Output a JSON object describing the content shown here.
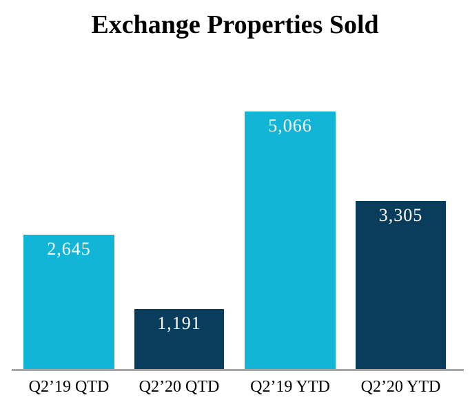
{
  "title": "Exchange Properties Sold",
  "colors": {
    "background": "#FFFFFF",
    "cyan_bar": "#12B5D6",
    "navy_bar": "#0A3D5C",
    "axis_line": "#A6A6A6",
    "value_label_text": "#FFFFFF",
    "title_text": "#000000",
    "category_label_text": "#000000"
  },
  "chart_data": {
    "type": "bar",
    "title": "Exchange Properties Sold",
    "categories": [
      "Q2’19 QTD",
      "Q2’20 QTD",
      "Q2’19 YTD",
      "Q2’20 YTD"
    ],
    "values": [
      2645,
      1191,
      5066,
      3305
    ],
    "value_labels": [
      "2,645",
      "1,191",
      "5,066",
      "3,305"
    ],
    "bar_colors": [
      "#12B5D6",
      "#0A3D5C",
      "#12B5D6",
      "#0A3D5C"
    ],
    "xlabel": "",
    "ylabel": "",
    "ylim": [
      0,
      5200
    ],
    "grid": false,
    "legend": false,
    "y_axis_visible": false,
    "data_labels_position": "inside-top"
  }
}
